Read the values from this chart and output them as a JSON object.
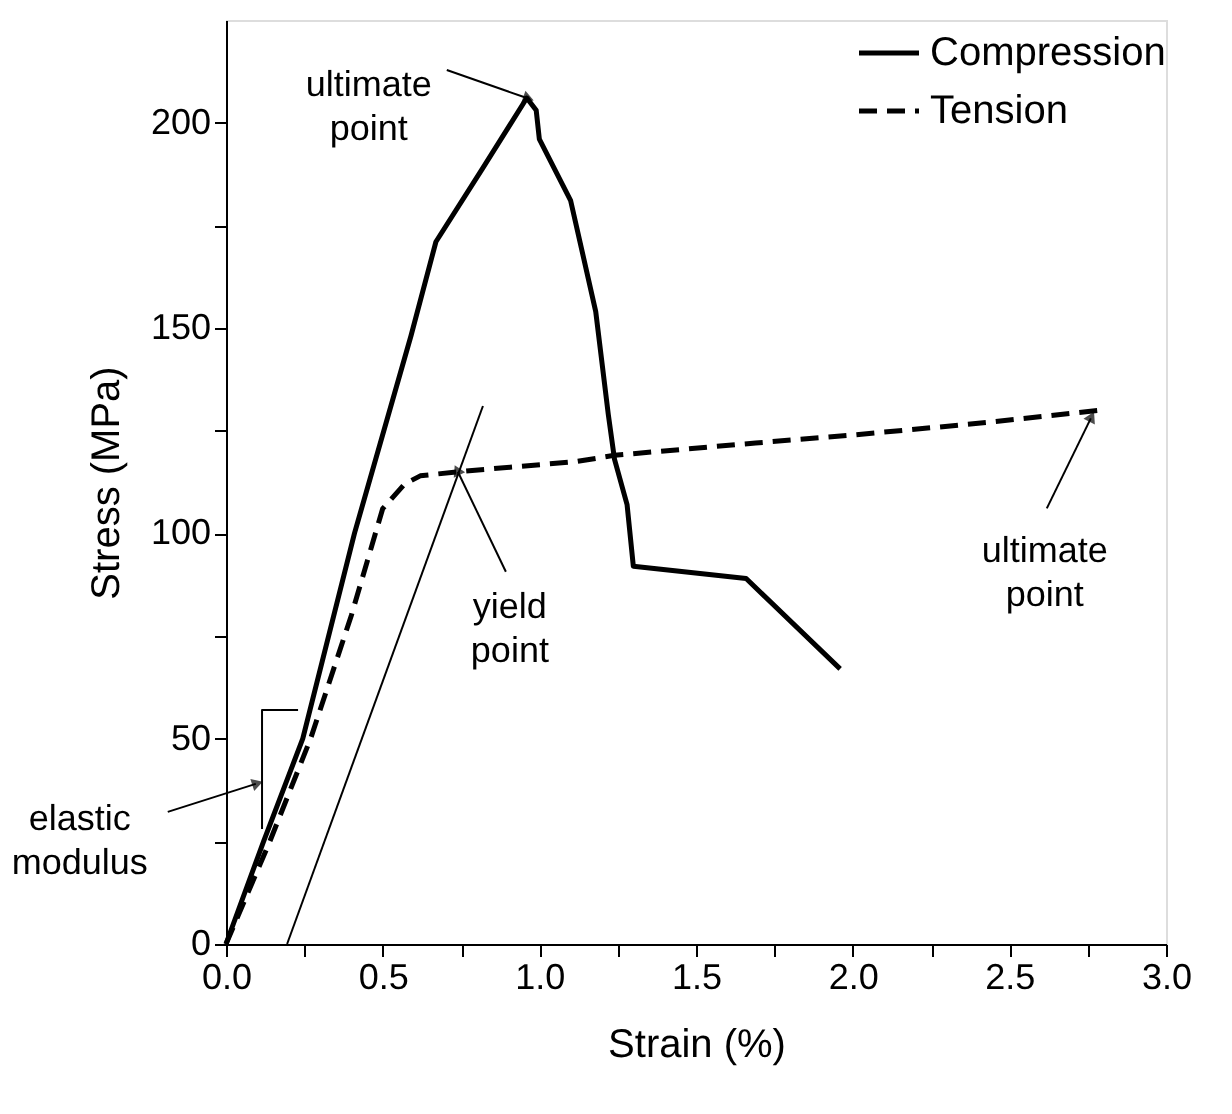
{
  "chart_data": {
    "type": "line",
    "xlabel": "Strain (%)",
    "ylabel": "Stress (MPa)",
    "xlim": [
      0,
      3.0
    ],
    "ylim": [
      0,
      225
    ],
    "xticks": [
      {
        "value": 0,
        "label": "0.0"
      },
      {
        "value": 0.25,
        "label": null
      },
      {
        "value": 0.5,
        "label": "0.5"
      },
      {
        "value": 0.75,
        "label": null
      },
      {
        "value": 1,
        "label": "1.0"
      },
      {
        "value": 1.25,
        "label": null
      },
      {
        "value": 1.5,
        "label": "1.5"
      },
      {
        "value": 1.75,
        "label": null
      },
      {
        "value": 2,
        "label": "2.0"
      },
      {
        "value": 2.25,
        "label": null
      },
      {
        "value": 2.5,
        "label": "2.5"
      },
      {
        "value": 2.75,
        "label": null
      },
      {
        "value": 3,
        "label": "3.0"
      }
    ],
    "yticks": [
      0,
      {
        "value": 25,
        "label": null
      },
      50,
      {
        "value": 75,
        "label": null
      },
      100,
      {
        "value": 125,
        "label": null
      },
      150,
      {
        "value": 175,
        "label": null
      },
      200
    ],
    "grid": false,
    "legend": "top right",
    "marker": "none",
    "series": [
      {
        "name": "Compression",
        "color": "#000000",
        "line_style": "solid",
        "x": [
          0,
          0.12,
          0.245,
          0.41,
          0.59,
          0.67,
          0.82,
          0.96,
          0.99,
          1.0,
          1.1,
          1.18,
          1.22,
          1.24,
          1.28,
          1.3,
          1.66,
          1.96
        ],
        "values": [
          0,
          25,
          50,
          100,
          148,
          171,
          189,
          206,
          203,
          196,
          181,
          154,
          129,
          118,
          107,
          92,
          89,
          67
        ]
      },
      {
        "name": "Tension",
        "color": "#000000",
        "line_style": "dashed",
        "x": [
          0,
          0.14,
          0.27,
          0.4,
          0.5,
          0.57,
          0.62,
          0.74,
          1.12,
          1.24,
          1.69,
          2.01,
          2.43,
          2.79
        ],
        "values": [
          0,
          25,
          50,
          80,
          106,
          112,
          114,
          115,
          117.5,
          119,
          122,
          124,
          127,
          130
        ]
      },
      {
        "color": "#000000",
        "line_style": "solid",
        "x": [
          0.195,
          0.82
        ],
        "values": [
          0,
          131
        ]
      },
      {
        "color": "#000000",
        "line_style": "solid",
        "x": [
          0.115,
          0.115,
          0.23
        ],
        "values": [
          28,
          57,
          57
        ]
      }
    ],
    "annotations": [
      {
        "text": "ultimate\npoint",
        "x": 0.96,
        "y": 206
      },
      {
        "text": "yield\npoint",
        "x": 0.74,
        "y": 115
      },
      {
        "text": "ultimate\npoint",
        "x": 2.76,
        "y": 128
      },
      {
        "text": "elastic\nmodulus",
        "x": 0.095,
        "y": 39
      }
    ]
  }
}
